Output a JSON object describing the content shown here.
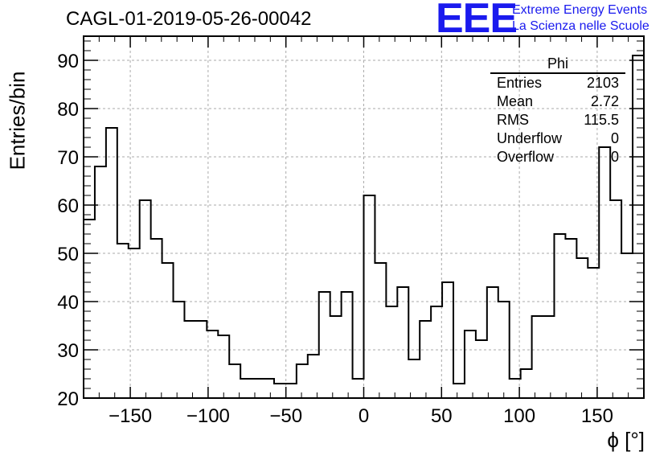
{
  "chart_data": {
    "type": "histogram",
    "title": "CAGL-01-2019-05-26-00042",
    "xlabel": "ϕ [°]",
    "ylabel": "Entries/bin",
    "xlim": [
      -180,
      180
    ],
    "ylim": [
      20,
      95
    ],
    "bin_width": 7.2,
    "grid": true,
    "x_ticks": [
      -150,
      -100,
      -50,
      0,
      50,
      100,
      150
    ],
    "x_tick_labels": [
      "−150",
      "−100",
      "−50",
      "0",
      "50",
      "100",
      "150"
    ],
    "y_ticks": [
      20,
      30,
      40,
      50,
      60,
      70,
      80,
      90
    ],
    "y_tick_labels": [
      "20",
      "30",
      "40",
      "50",
      "60",
      "70",
      "80",
      "90"
    ],
    "values": [
      57,
      68,
      76,
      52,
      51,
      61,
      53,
      48,
      40,
      36,
      36,
      34,
      33,
      27,
      24,
      24,
      24,
      23,
      23,
      27,
      29,
      42,
      37,
      42,
      24,
      62,
      48,
      39,
      43,
      28,
      36,
      39,
      44,
      23,
      34,
      32,
      43,
      40,
      24,
      26,
      37,
      37,
      54,
      53,
      49,
      47,
      72,
      61,
      50,
      91
    ],
    "stats": {
      "name": "Phi",
      "rows": [
        {
          "label": "Entries",
          "value": "2103"
        },
        {
          "label": "Mean",
          "value": "2.72"
        },
        {
          "label": "RMS",
          "value": "115.5"
        },
        {
          "label": "Underflow",
          "value": "0"
        },
        {
          "label": "Overflow",
          "value": "0"
        }
      ]
    }
  },
  "branding": {
    "logo_text": "EEE",
    "tagline_1": "Extreme Energy Events",
    "tagline_2": "La Scienza nelle Scuole",
    "color": "#1a1aee"
  }
}
